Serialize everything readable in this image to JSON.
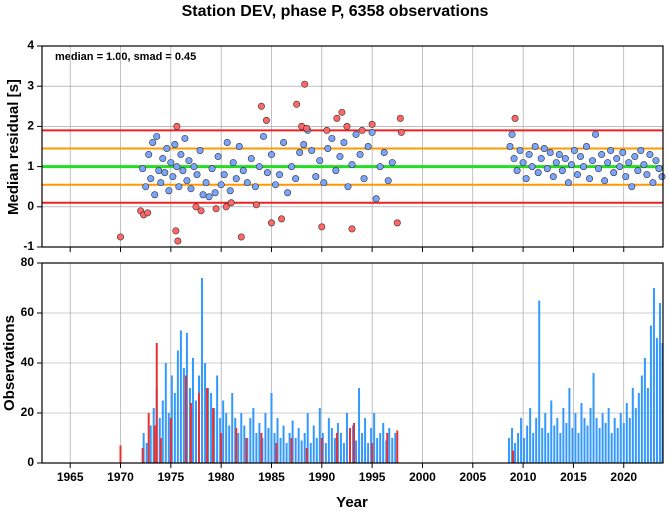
{
  "chart_data": [
    {
      "type": "scatter",
      "title": "Station DEV, phase P, 6358 observations",
      "ylabel": "Median residual [s]",
      "annotation": "median = 1.00, smad = 0.45",
      "xlim": [
        1962.2,
        2023.9
      ],
      "xticks": [
        1965,
        1970,
        1975,
        1980,
        1985,
        1990,
        1995,
        2000,
        2005,
        2010,
        2015,
        2020
      ],
      "xtick_labels": false,
      "ylim": [
        -1,
        4
      ],
      "yticks": [
        -1,
        0,
        1,
        2,
        3,
        4
      ],
      "grid": true,
      "hlines": [
        {
          "value": 1.9,
          "color": "#ee2222"
        },
        {
          "value": 1.45,
          "color": "#ff9900"
        },
        {
          "value": 1.0,
          "color": "#22dd22"
        },
        {
          "value": 0.55,
          "color": "#ff9900"
        },
        {
          "value": 0.1,
          "color": "#ee2222"
        }
      ],
      "series": [
        {
          "color": "#7aa5ff",
          "x": [
            1972.2,
            1972.5,
            1972.8,
            1973.0,
            1973.2,
            1973.4,
            1973.6,
            1973.8,
            1974.0,
            1974.2,
            1974.4,
            1974.6,
            1974.8,
            1975.0,
            1975.2,
            1975.4,
            1975.6,
            1975.8,
            1976.0,
            1976.2,
            1976.4,
            1976.6,
            1976.8,
            1977.0,
            1977.3,
            1977.6,
            1977.9,
            1978.2,
            1978.5,
            1978.8,
            1979.1,
            1979.4,
            1979.7,
            1980.0,
            1980.3,
            1980.6,
            1980.9,
            1981.2,
            1981.5,
            1981.8,
            1982.2,
            1982.6,
            1983.0,
            1983.4,
            1983.8,
            1984.2,
            1984.6,
            1985.0,
            1985.4,
            1985.8,
            1986.2,
            1986.6,
            1987.0,
            1987.4,
            1987.8,
            1988.2,
            1988.6,
            1989.0,
            1989.4,
            1989.8,
            1990.2,
            1990.6,
            1991.0,
            1991.4,
            1991.8,
            1992.2,
            1992.6,
            1993.0,
            1993.4,
            1993.8,
            1994.2,
            1994.6,
            1995.0,
            1995.4,
            1995.8,
            1996.2,
            1996.6,
            1997.0,
            2008.7,
            2008.9,
            2009.1,
            2009.4,
            2009.7,
            2010.0,
            2010.3,
            2010.6,
            2010.9,
            2011.2,
            2011.5,
            2011.8,
            2012.1,
            2012.4,
            2012.7,
            2013.0,
            2013.3,
            2013.6,
            2013.9,
            2014.2,
            2014.5,
            2014.8,
            2015.1,
            2015.4,
            2015.7,
            2016.0,
            2016.3,
            2016.6,
            2016.9,
            2017.2,
            2017.5,
            2017.8,
            2018.1,
            2018.4,
            2018.7,
            2019.0,
            2019.3,
            2019.6,
            2019.9,
            2020.2,
            2020.5,
            2020.8,
            2021.1,
            2021.4,
            2021.7,
            2022.0,
            2022.3,
            2022.6,
            2022.9,
            2023.2,
            2023.5,
            2023.8
          ],
          "values": [
            0.95,
            0.5,
            1.3,
            0.7,
            1.6,
            0.3,
            1.75,
            0.9,
            0.6,
            1.2,
            0.85,
            1.45,
            0.4,
            1.1,
            0.75,
            1.55,
            1.0,
            0.5,
            1.3,
            0.9,
            1.7,
            0.65,
            1.15,
            0.45,
            1.0,
            0.8,
            1.4,
            0.3,
            0.6,
            0.25,
            0.95,
            0.35,
            1.25,
            0.55,
            0.8,
            1.6,
            0.4,
            1.1,
            0.7,
            1.5,
            0.9,
            0.6,
            1.2,
            0.5,
            1.0,
            1.75,
            0.85,
            1.3,
            0.55,
            0.8,
            1.6,
            0.35,
            1.0,
            0.7,
            1.35,
            1.55,
            1.9,
            1.4,
            0.75,
            1.15,
            0.6,
            1.45,
            1.7,
            0.9,
            1.25,
            1.6,
            0.5,
            1.05,
            1.8,
            1.3,
            0.7,
            1.5,
            1.85,
            0.2,
            1.0,
            1.35,
            0.65,
            1.1,
            1.5,
            1.8,
            1.2,
            0.9,
            1.4,
            1.1,
            0.7,
            1.3,
            1.0,
            1.5,
            0.85,
            1.2,
            1.45,
            0.95,
            1.35,
            0.75,
            1.1,
            1.3,
            0.9,
            1.2,
            0.6,
            1.05,
            1.4,
            0.8,
            1.25,
            1.0,
            1.5,
            0.7,
            1.15,
            1.8,
            0.95,
            1.3,
            0.65,
            1.1,
            1.4,
            0.85,
            1.2,
            1.0,
            1.35,
            0.75,
            1.1,
            0.5,
            1.25,
            0.9,
            1.4,
            1.05,
            0.8,
            1.3,
            0.6,
            1.15,
            0.95,
            0.75
          ]
        },
        {
          "color": "#ff6666",
          "x": [
            1970.0,
            1972.0,
            1972.3,
            1972.7,
            1975.5,
            1975.7,
            1975.6,
            1977.5,
            1978.0,
            1979.5,
            1980.5,
            1981.0,
            1982.0,
            1983.5,
            1984.0,
            1984.5,
            1985.0,
            1986.0,
            1987.5,
            1988.0,
            1988.3,
            1988.5,
            1990.0,
            1990.5,
            1991.5,
            1992.0,
            1992.5,
            1993.0,
            1994.0,
            1995.0,
            1997.5,
            1997.8,
            1997.9,
            2009.2
          ],
          "values": [
            -0.75,
            -0.1,
            -0.2,
            -0.15,
            -0.6,
            -0.85,
            2.0,
            0.0,
            -0.1,
            -0.05,
            0.0,
            0.1,
            -0.75,
            0.05,
            2.5,
            2.15,
            -0.4,
            -0.3,
            2.55,
            2.0,
            3.05,
            1.95,
            -0.5,
            1.9,
            2.2,
            2.35,
            2.0,
            -0.55,
            1.9,
            2.05,
            -0.4,
            2.2,
            1.85,
            2.2
          ]
        }
      ]
    },
    {
      "type": "bar",
      "xlabel": "Year",
      "ylabel": "Observations",
      "xlim": [
        1962.2,
        2023.9
      ],
      "xticks": [
        1965,
        1970,
        1975,
        1980,
        1985,
        1990,
        1995,
        2000,
        2005,
        2010,
        2015,
        2020
      ],
      "xtick_labels": true,
      "ylim": [
        0,
        80
      ],
      "yticks": [
        0,
        20,
        40,
        60,
        80
      ],
      "grid": true,
      "series": [
        {
          "color": "#3399ff",
          "x": [
            1972.3,
            1972.6,
            1973.0,
            1973.3,
            1973.6,
            1973.9,
            1974.2,
            1974.5,
            1974.8,
            1975.1,
            1975.4,
            1975.7,
            1976.0,
            1976.3,
            1976.6,
            1976.9,
            1977.2,
            1977.5,
            1977.8,
            1978.1,
            1978.4,
            1978.7,
            1979.0,
            1979.3,
            1979.6,
            1979.9,
            1980.2,
            1980.5,
            1980.8,
            1981.1,
            1981.4,
            1981.7,
            1982.0,
            1982.3,
            1982.6,
            1982.9,
            1983.2,
            1983.5,
            1983.8,
            1984.1,
            1984.4,
            1984.7,
            1985.0,
            1985.3,
            1985.6,
            1985.9,
            1986.2,
            1986.5,
            1986.8,
            1987.1,
            1987.4,
            1987.7,
            1988.0,
            1988.3,
            1988.6,
            1988.9,
            1989.2,
            1989.5,
            1989.8,
            1990.1,
            1990.4,
            1990.7,
            1991.0,
            1991.3,
            1991.6,
            1991.9,
            1992.2,
            1992.5,
            1992.8,
            1993.1,
            1993.4,
            1993.7,
            1994.0,
            1994.3,
            1994.6,
            1994.9,
            1995.2,
            1995.5,
            1995.8,
            1996.1,
            1996.4,
            1996.7,
            1997.0,
            1997.3,
            2008.6,
            2008.9,
            2009.2,
            2009.5,
            2009.8,
            2010.1,
            2010.4,
            2010.7,
            2011.0,
            2011.3,
            2011.6,
            2011.9,
            2012.2,
            2012.5,
            2012.8,
            2013.1,
            2013.4,
            2013.7,
            2014.0,
            2014.3,
            2014.6,
            2014.9,
            2015.2,
            2015.5,
            2015.8,
            2016.1,
            2016.4,
            2016.7,
            2017.0,
            2017.3,
            2017.6,
            2017.9,
            2018.2,
            2018.5,
            2018.8,
            2019.1,
            2019.4,
            2019.7,
            2020.0,
            2020.3,
            2020.6,
            2020.9,
            2021.2,
            2021.5,
            2021.8,
            2022.1,
            2022.4,
            2022.7,
            2023.0,
            2023.3,
            2023.6,
            2023.85
          ],
          "values": [
            12,
            8,
            15,
            22,
            30,
            18,
            25,
            40,
            20,
            35,
            28,
            45,
            53,
            38,
            52,
            30,
            42,
            25,
            35,
            74,
            40,
            30,
            28,
            22,
            35,
            18,
            25,
            20,
            15,
            28,
            18,
            12,
            20,
            15,
            10,
            18,
            22,
            12,
            16,
            10,
            20,
            14,
            28,
            12,
            18,
            10,
            15,
            8,
            12,
            17,
            10,
            14,
            9,
            12,
            20,
            8,
            15,
            10,
            22,
            12,
            8,
            18,
            14,
            10,
            16,
            12,
            8,
            20,
            12,
            15,
            9,
            30,
            12,
            18,
            8,
            14,
            20,
            10,
            12,
            16,
            9,
            14,
            10,
            12,
            10,
            14,
            8,
            12,
            18,
            10,
            15,
            22,
            12,
            18,
            65,
            14,
            20,
            12,
            25,
            15,
            18,
            12,
            22,
            16,
            30,
            14,
            20,
            12,
            24,
            18,
            15,
            22,
            36,
            18,
            14,
            20,
            16,
            22,
            12,
            18,
            14,
            20,
            16,
            24,
            18,
            30,
            22,
            28,
            35,
            42,
            30,
            55,
            70,
            50,
            64,
            48
          ]
        },
        {
          "color": "#e83030",
          "x": [
            1970.0,
            1972.2,
            1972.8,
            1973.4,
            1973.6,
            1974.0,
            1975.0,
            1976.5,
            1977.0,
            1977.8,
            1978.6,
            1979.2,
            1980.0,
            1981.5,
            1982.5,
            1984.0,
            1985.5,
            1987.0,
            1988.5,
            1990.0,
            1991.5,
            1992.8,
            1993.2,
            1995.0,
            1996.5,
            1997.5,
            2009.0
          ],
          "values": [
            7,
            6,
            20,
            15,
            48,
            10,
            18,
            35,
            24,
            28,
            30,
            22,
            12,
            14,
            10,
            12,
            8,
            10,
            6,
            10,
            12,
            14,
            16,
            8,
            12,
            13,
            5
          ]
        }
      ]
    }
  ]
}
